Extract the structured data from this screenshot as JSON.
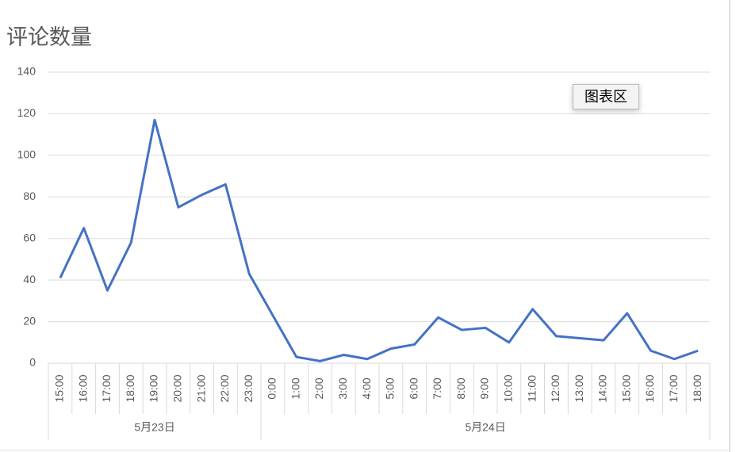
{
  "chart_data": {
    "type": "line",
    "title": "评论数量",
    "groups": [
      {
        "label": "5月23日",
        "categories": [
          "15:00",
          "16:00",
          "17:00",
          "18:00",
          "19:00",
          "20:00",
          "21:00",
          "22:00",
          "23:00"
        ]
      },
      {
        "label": "5月24日",
        "categories": [
          "0:00",
          "1:00",
          "2:00",
          "3:00",
          "4:00",
          "5:00",
          "6:00",
          "7:00",
          "8:00",
          "9:00",
          "10:00",
          "11:00",
          "12:00",
          "13:00",
          "14:00",
          "15:00",
          "16:00",
          "17:00",
          "18:00"
        ]
      }
    ],
    "values": [
      41,
      65,
      35,
      58,
      117,
      75,
      81,
      86,
      43,
      23,
      3,
      1,
      4,
      2,
      7,
      9,
      22,
      16,
      17,
      10,
      26,
      13,
      12,
      11,
      24,
      6,
      2,
      6
    ],
    "color": "#4472c4",
    "ylim": [
      0,
      140
    ],
    "yticks": [
      0,
      20,
      40,
      60,
      80,
      100,
      120,
      140
    ],
    "grid": true
  },
  "tooltip": "图表区"
}
